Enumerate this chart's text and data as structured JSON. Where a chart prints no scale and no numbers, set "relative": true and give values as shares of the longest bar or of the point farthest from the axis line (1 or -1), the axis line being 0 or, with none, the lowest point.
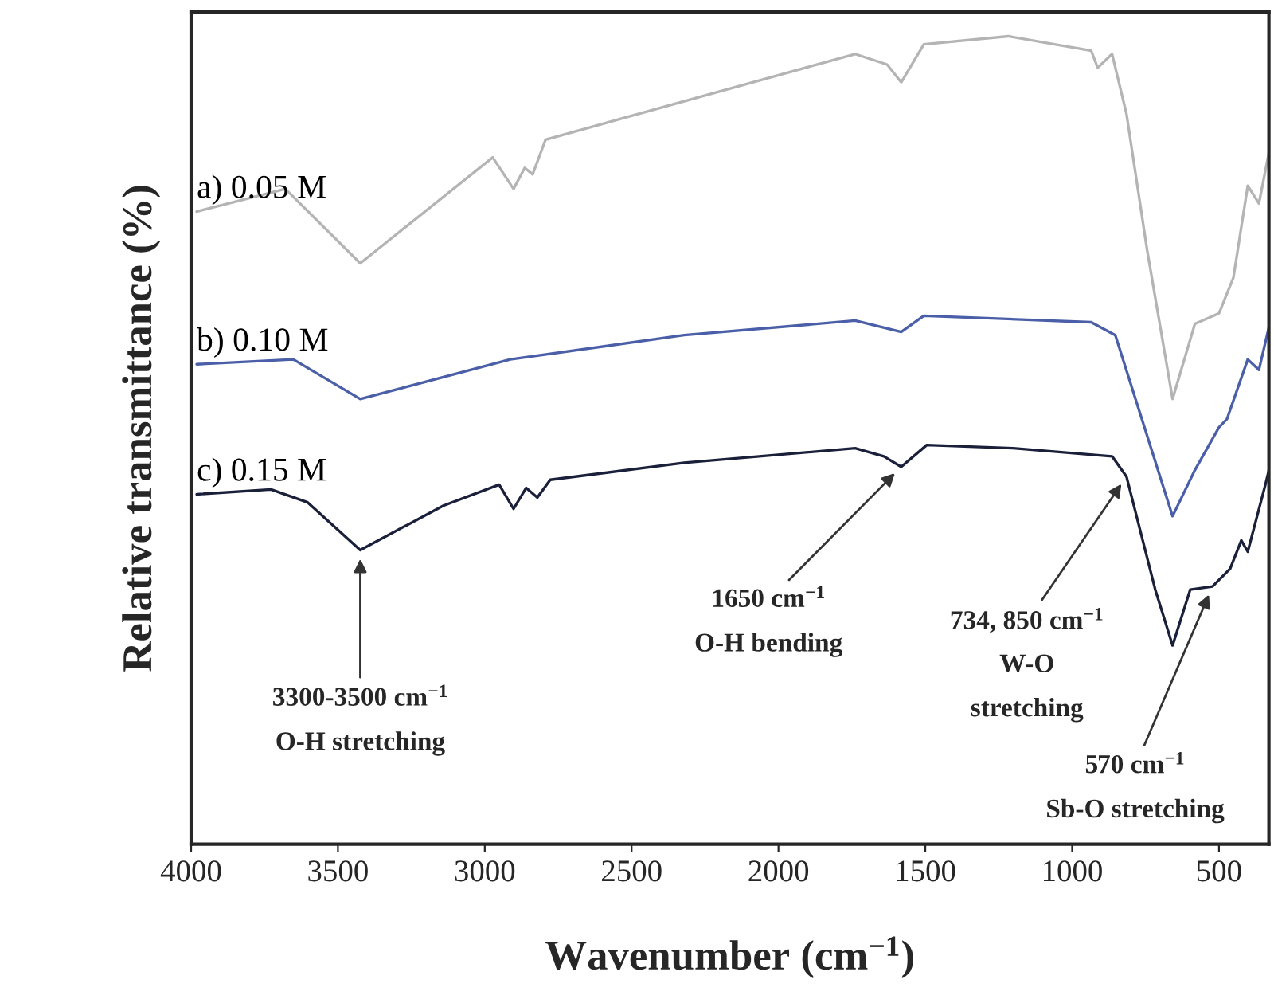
{
  "chart_data": {
    "type": "line",
    "relative": true,
    "xlabel": "Wavenumber (cm$^{−1}$)",
    "ylabel": "Relative transmittance (%)",
    "xlim": [
      4000,
      330
    ],
    "xticks": [
      4000,
      3500,
      3000,
      2500,
      2000,
      1500,
      1000,
      500
    ],
    "grid": false,
    "legend": false,
    "series": [
      {
        "name": "a) 0.05 M",
        "color": "#b4b4b4",
        "x": [
          3981,
          3679,
          3424,
          2973,
          2902,
          2864,
          2837,
          2793,
          1739,
          1630,
          1582,
          1505,
          1217,
          935,
          913,
          864,
          815,
          745,
          658,
          582,
          500,
          451,
          402,
          364,
          330
        ],
        "values": [
          0.783,
          0.811,
          0.719,
          0.85,
          0.811,
          0.837,
          0.829,
          0.872,
          0.978,
          0.965,
          0.943,
          0.99,
          1.0,
          0.982,
          0.961,
          0.978,
          0.904,
          0.736,
          0.551,
          0.644,
          0.657,
          0.701,
          0.815,
          0.793,
          0.856
        ]
      },
      {
        "name": "b) 0.10 M",
        "color": "#4a5fa8",
        "x": [
          3981,
          3652,
          3424,
          2913,
          2321,
          1739,
          1582,
          1505,
          935,
          853,
          658,
          582,
          500,
          473,
          402,
          364,
          330
        ],
        "values": [
          0.594,
          0.6,
          0.551,
          0.6,
          0.63,
          0.648,
          0.634,
          0.654,
          0.646,
          0.63,
          0.406,
          0.463,
          0.516,
          0.526,
          0.6,
          0.587,
          0.64
        ]
      },
      {
        "name": "c) 0.15 M",
        "color": "#1a1f3a",
        "x": [
          3981,
          3728,
          3603,
          3424,
          3141,
          2951,
          2902,
          2859,
          2821,
          2777,
          2321,
          1739,
          1641,
          1582,
          1495,
          1201,
          864,
          815,
          717,
          658,
          598,
          522,
          462,
          424,
          402,
          342,
          330
        ],
        "values": [
          0.433,
          0.439,
          0.423,
          0.364,
          0.419,
          0.445,
          0.415,
          0.441,
          0.429,
          0.451,
          0.472,
          0.49,
          0.48,
          0.467,
          0.494,
          0.49,
          0.48,
          0.455,
          0.315,
          0.246,
          0.315,
          0.319,
          0.341,
          0.376,
          0.362,
          0.445,
          0.463
        ]
      }
    ],
    "annotations": [
      {
        "text": "3300-3500 cm$^{−1}$",
        "x": 3424,
        "y": 0.364
      },
      "O-H stretching",
      {
        "text": "1650 cm$^{−1}$",
        "x": 1582,
        "y": 0.467
      },
      "O-H bending",
      {
        "text": "734, 850 cm$^{−1}$",
        "x": 815,
        "y": 0.455
      },
      "W-O",
      "stretching",
      {
        "text": "570 cm$^{−1}$",
        "x": 522,
        "y": 0.319
      },
      "Sb-O stretching"
    ]
  }
}
